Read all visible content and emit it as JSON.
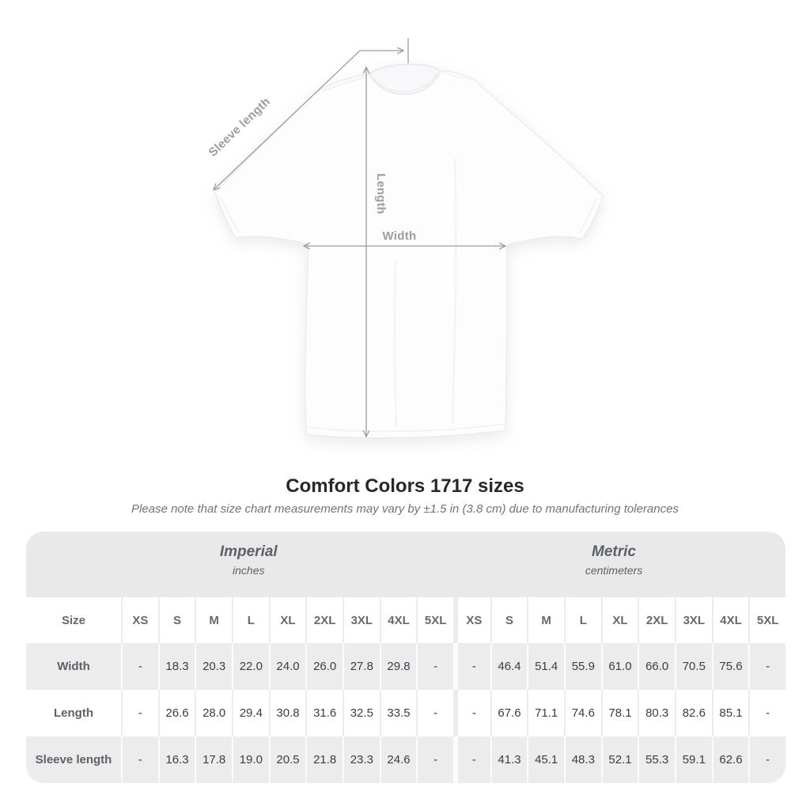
{
  "figure": {
    "labels": {
      "sleeve_length": "Sleeve length",
      "length": "Length",
      "width": "Width"
    },
    "annotation_color": "#98a0a5",
    "shirt_color": "#fdfdfe"
  },
  "heading": {
    "title": "Comfort Colors 1717 sizes",
    "subtitle": "Please note that size chart measurements may vary by ±1.5 in (3.8 cm) due to manufacturing tolerances"
  },
  "table": {
    "groups": [
      {
        "name": "Imperial",
        "unit": "inches"
      },
      {
        "name": "Metric",
        "unit": "centimeters"
      }
    ],
    "size_header": "Size",
    "sizes": [
      "XS",
      "S",
      "M",
      "L",
      "XL",
      "2XL",
      "3XL",
      "4XL",
      "5XL"
    ],
    "rows": [
      {
        "label": "Width",
        "imperial": [
          "-",
          "18.3",
          "20.3",
          "22.0",
          "24.0",
          "26.0",
          "27.8",
          "29.8",
          "-"
        ],
        "metric": [
          "-",
          "46.4",
          "51.4",
          "55.9",
          "61.0",
          "66.0",
          "70.5",
          "75.6",
          "-"
        ]
      },
      {
        "label": "Length",
        "imperial": [
          "-",
          "26.6",
          "28.0",
          "29.4",
          "30.8",
          "31.6",
          "32.5",
          "33.5",
          "-"
        ],
        "metric": [
          "-",
          "67.6",
          "71.1",
          "74.6",
          "78.1",
          "80.3",
          "82.6",
          "85.1",
          "-"
        ]
      },
      {
        "label": "Sleeve length",
        "imperial": [
          "-",
          "16.3",
          "17.8",
          "19.0",
          "20.5",
          "21.8",
          "23.3",
          "24.6",
          "-"
        ],
        "metric": [
          "-",
          "41.3",
          "45.1",
          "48.3",
          "52.1",
          "55.3",
          "59.1",
          "62.6",
          "-"
        ]
      }
    ]
  },
  "chart_data": {
    "type": "table",
    "title": "Comfort Colors 1717 sizes",
    "note": "Measurements may vary by ±1.5 in (3.8 cm)",
    "categories": [
      "XS",
      "S",
      "M",
      "L",
      "XL",
      "2XL",
      "3XL",
      "4XL",
      "5XL"
    ],
    "series": [
      {
        "name": "Width (in)",
        "values": [
          null,
          18.3,
          20.3,
          22.0,
          24.0,
          26.0,
          27.8,
          29.8,
          null
        ]
      },
      {
        "name": "Length (in)",
        "values": [
          null,
          26.6,
          28.0,
          29.4,
          30.8,
          31.6,
          32.5,
          33.5,
          null
        ]
      },
      {
        "name": "Sleeve length (in)",
        "values": [
          null,
          16.3,
          17.8,
          19.0,
          20.5,
          21.8,
          23.3,
          24.6,
          null
        ]
      },
      {
        "name": "Width (cm)",
        "values": [
          null,
          46.4,
          51.4,
          55.9,
          61.0,
          66.0,
          70.5,
          75.6,
          null
        ]
      },
      {
        "name": "Length (cm)",
        "values": [
          null,
          67.6,
          71.1,
          74.6,
          78.1,
          80.3,
          82.6,
          85.1,
          null
        ]
      },
      {
        "name": "Sleeve length (cm)",
        "values": [
          null,
          41.3,
          45.1,
          48.3,
          52.1,
          55.3,
          59.1,
          62.6,
          null
        ]
      }
    ]
  }
}
